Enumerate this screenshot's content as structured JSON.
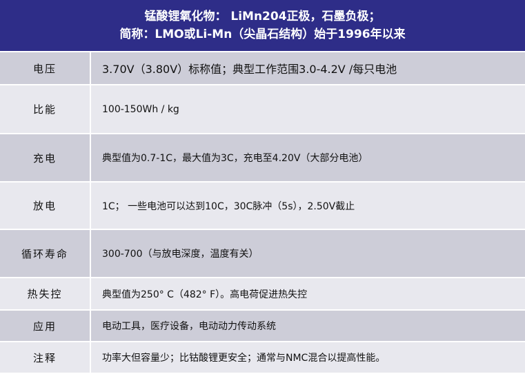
{
  "header": {
    "line1": "锰酸锂氧化物： LiMn204正极，石墨负极；",
    "line2": "简称：LMO或Li-Mn（尖晶石结构）始于1996年以来"
  },
  "rows": [
    {
      "label": "电压",
      "value": "3.70V（3.80V）标称值；典型工作范围3.0-4.2V /每只电池"
    },
    {
      "label": "比能",
      "value": "100-150Wh / kg"
    },
    {
      "label": "充电",
      "value": "典型值为0.7-1C，最大值为3C，充电至4.20V（大部分电池）"
    },
    {
      "label": "放电",
      "value": "1C； 一些电池可以达到10C，30C脉冲（5s），2.50V截止"
    },
    {
      "label": "循环寿命",
      "value": "300-700（与放电深度，温度有关）"
    },
    {
      "label": "热失控",
      "value": "典型值为250° C（482° F）。高电荷促进热失控"
    },
    {
      "label": "应用",
      "value": "电动工具，医疗设备，电动动力传动系统"
    },
    {
      "label": "注释",
      "value": "功率大但容量少；比钴酸锂更安全；通常与NMC混合以提高性能。"
    }
  ],
  "colors": {
    "header": "#2e2d88",
    "row_dark": "#cdcdd8",
    "row_light": "#e8e8ee"
  }
}
